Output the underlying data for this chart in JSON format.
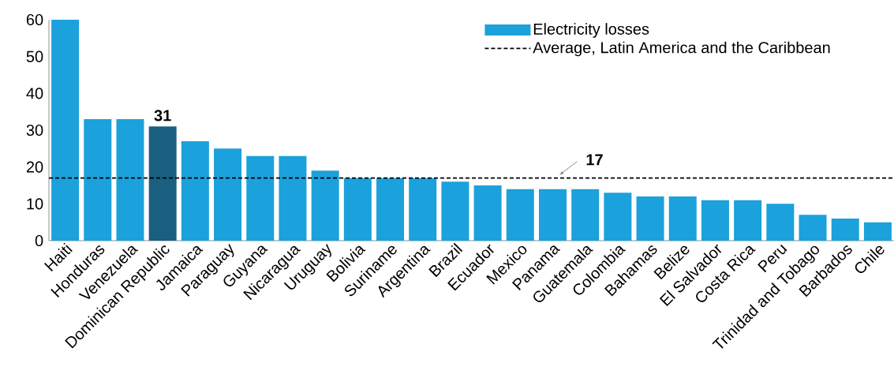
{
  "chart_data": {
    "type": "bar",
    "categories": [
      "Haiti",
      "Honduras",
      "Venezuela",
      "Dominican Republic",
      "Jamaica",
      "Paraguay",
      "Guyana",
      "Nicaragua",
      "Uruguay",
      "Bolivia",
      "Suriname",
      "Argentina",
      "Brazil",
      "Ecuador",
      "Mexico",
      "Panama",
      "Guatemala",
      "Colombia",
      "Bahamas",
      "Belize",
      "El Salvador",
      "Costa Rica",
      "Peru",
      "Trinidad and Tobago",
      "Barbados",
      "Chile"
    ],
    "series": [
      {
        "name": "Electricity losses",
        "color": "#1ba1db",
        "values": [
          60,
          33,
          33,
          31,
          27,
          25,
          23,
          23,
          19,
          17,
          17,
          17,
          16,
          15,
          14,
          14,
          14,
          13,
          12,
          12,
          11,
          11,
          10,
          7,
          6,
          5
        ],
        "colors": [
          "#1ba1db",
          "#1ba1db",
          "#1ba1db",
          "#1a5f80",
          "#1ba1db",
          "#1ba1db",
          "#1ba1db",
          "#1ba1db",
          "#1ba1db",
          "#1ba1db",
          "#1ba1db",
          "#1ba1db",
          "#1ba1db",
          "#1ba1db",
          "#1ba1db",
          "#1ba1db",
          "#1ba1db",
          "#1ba1db",
          "#1ba1db",
          "#1ba1db",
          "#1ba1db",
          "#1ba1db",
          "#1ba1db",
          "#1ba1db",
          "#1ba1db",
          "#1ba1db"
        ],
        "value_labels": [
          null,
          null,
          null,
          "31",
          null,
          null,
          null,
          null,
          null,
          null,
          null,
          null,
          null,
          null,
          null,
          null,
          null,
          null,
          null,
          null,
          null,
          null,
          null,
          null,
          null,
          null
        ]
      }
    ],
    "ref_lines": [
      {
        "axis": "y",
        "value": 17,
        "label": "Average, Latin America and the Caribbean",
        "color": "#000000",
        "line_style": "dashed"
      }
    ],
    "annotations": [
      {
        "text": "17",
        "x": "Panama",
        "y": 17
      }
    ],
    "ylim": [
      0,
      60
    ],
    "yticks": [
      0,
      10,
      20,
      30,
      40,
      50,
      60
    ],
    "grid": false,
    "legend": "top right"
  }
}
